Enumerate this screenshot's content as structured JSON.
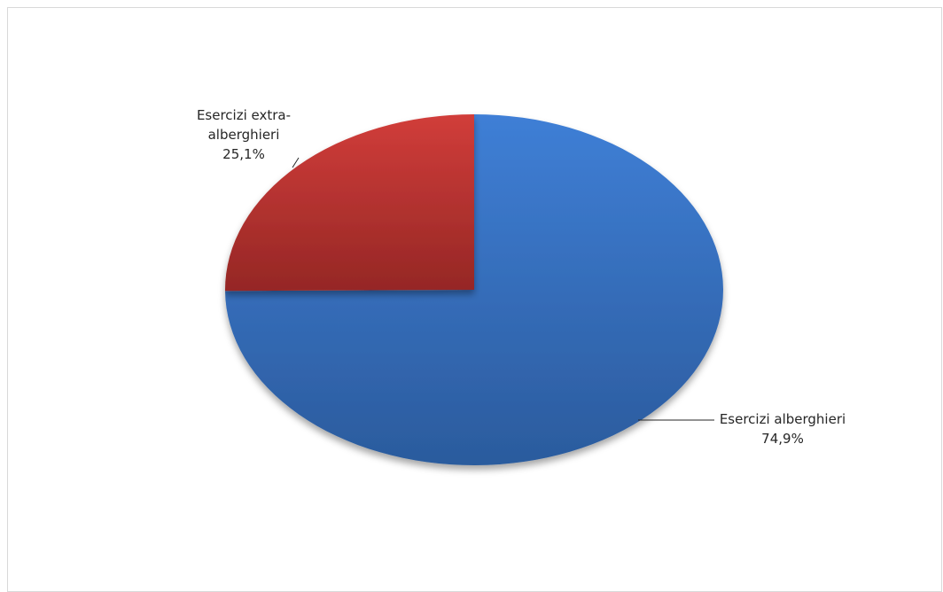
{
  "chart_data": {
    "type": "pie",
    "title": "",
    "categories": [
      "Esercizi alberghieri",
      "Esercizi extra-alberghieri"
    ],
    "values": [
      74.9,
      25.1
    ],
    "value_labels": [
      "74,9%",
      "25,1%"
    ],
    "label_lines": [
      [
        "Esercizi alberghieri",
        "74,9%"
      ],
      [
        "Esercizi extra-",
        "alberghieri",
        "25,1%"
      ]
    ],
    "colors": [
      "#3a73c4",
      "#b5302f"
    ],
    "legend": "none"
  }
}
